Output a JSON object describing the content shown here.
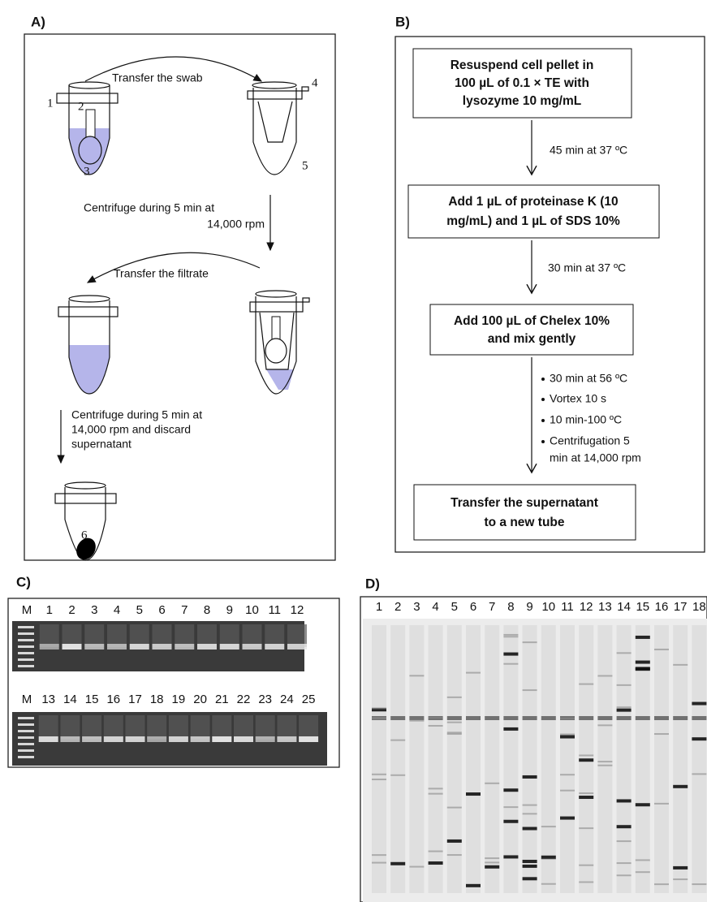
{
  "panel_a": {
    "label": "A)",
    "transfer_swab": "Transfer the swab",
    "centrifuge_1": [
      "Centrifuge during 5 min at",
      "14,000 rpm"
    ],
    "transfer_filtrate": "Transfer the filtrate",
    "centrifuge_2": [
      "Centrifuge during 5 min at",
      "14,000 rpm and discard",
      "supernatant"
    ],
    "parts": [
      "1",
      "2",
      "3",
      "4",
      "5",
      "6"
    ]
  },
  "panel_b": {
    "label": "B)",
    "boxes": [
      [
        "Resuspend cell pellet in",
        "100 µL of 0.1 × TE with",
        "lysozyme 10 mg/mL"
      ],
      [
        "Add 1 µL of proteinase K (10",
        "mg/mL) and 1 µL of SDS 10%"
      ],
      [
        "Add 100 µL of Chelex 10%",
        "and mix gently"
      ],
      [
        "Transfer the supernatant",
        "to a new tube"
      ]
    ],
    "steps": [
      "45 min at 37 ºC",
      "30 min at 37 ºC"
    ],
    "bullets": [
      "30 min at 56 ºC",
      "Vortex 10 s",
      "10 min-100 ºC",
      "Centrifugation 5",
      "min at 14,000 rpm"
    ]
  },
  "panel_c": {
    "label": "C)",
    "lanes_top": [
      "M",
      "1",
      "2",
      "3",
      "4",
      "5",
      "6",
      "7",
      "8",
      "9",
      "10",
      "11",
      "12"
    ],
    "lanes_bottom": [
      "M",
      "13",
      "14",
      "15",
      "16",
      "17",
      "18",
      "19",
      "20",
      "21",
      "22",
      "23",
      "24",
      "25"
    ]
  },
  "panel_d": {
    "label": "D)",
    "lanes": [
      "1",
      "2",
      "3",
      "4",
      "5",
      "6",
      "7",
      "8",
      "9",
      "10",
      "11",
      "12",
      "13",
      "14",
      "15",
      "16",
      "17",
      "18"
    ]
  }
}
